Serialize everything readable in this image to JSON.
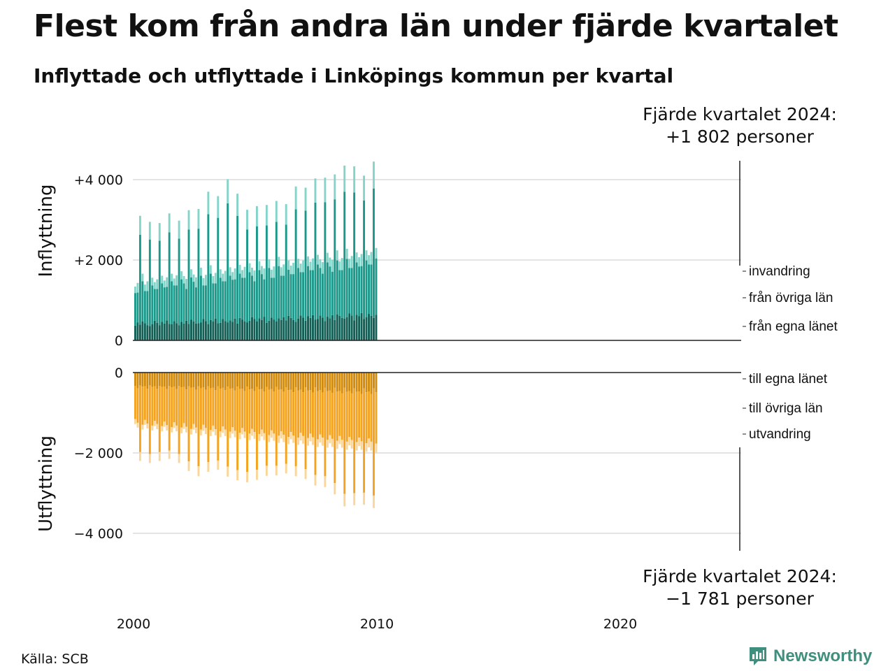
{
  "title": "Flest kom från andra län under fjärde kvartalet",
  "subtitle": "Inflyttade och utflyttade i Linköpings kommun per kvartal",
  "source": "Källa: SCB",
  "brand": {
    "name": "Newsworthy",
    "icon": "newsworthy-logo-icon"
  },
  "chart_data": {
    "type": "bar",
    "stacked": true,
    "grid": true,
    "x": [],
    "x_ticks": [
      "2000",
      "2010",
      "2020"
    ],
    "panels": [
      {
        "id": "in",
        "ylabel": "Inflyttning",
        "y_ticks": [
          {
            "value": 4000,
            "label": "+4 000"
          },
          {
            "value": 2000,
            "label": "+2 000"
          },
          {
            "value": 0,
            "label": "0"
          }
        ],
        "ylim": [
          0,
          4500
        ],
        "series": [
          {
            "name": "från egna länet",
            "color": "#105e54",
            "values": []
          },
          {
            "name": "från övriga län",
            "color": "#1a9889",
            "values": []
          },
          {
            "name": "invandring",
            "color": "#85d4ca",
            "values": []
          }
        ],
        "annotation": [
          "Fjärde kvartalet 2024:",
          "+1 802 personer"
        ]
      },
      {
        "id": "out",
        "ylabel": "Utflyttning",
        "y_ticks": [
          {
            "value": 0,
            "label": "0"
          },
          {
            "value": -2000,
            "label": "−2 000"
          },
          {
            "value": -4000,
            "label": "−4 000"
          }
        ],
        "ylim": [
          -4400,
          0
        ],
        "series": [
          {
            "name": "till egna länet",
            "color": "#d18a0c",
            "values": []
          },
          {
            "name": "till övriga län",
            "color": "#f5a21e",
            "values": []
          },
          {
            "name": "utvandring",
            "color": "#fbd69a",
            "values": []
          }
        ],
        "annotation": [
          "Fjärde kvartalet 2024:",
          "−1 781 personer"
        ]
      }
    ]
  }
}
